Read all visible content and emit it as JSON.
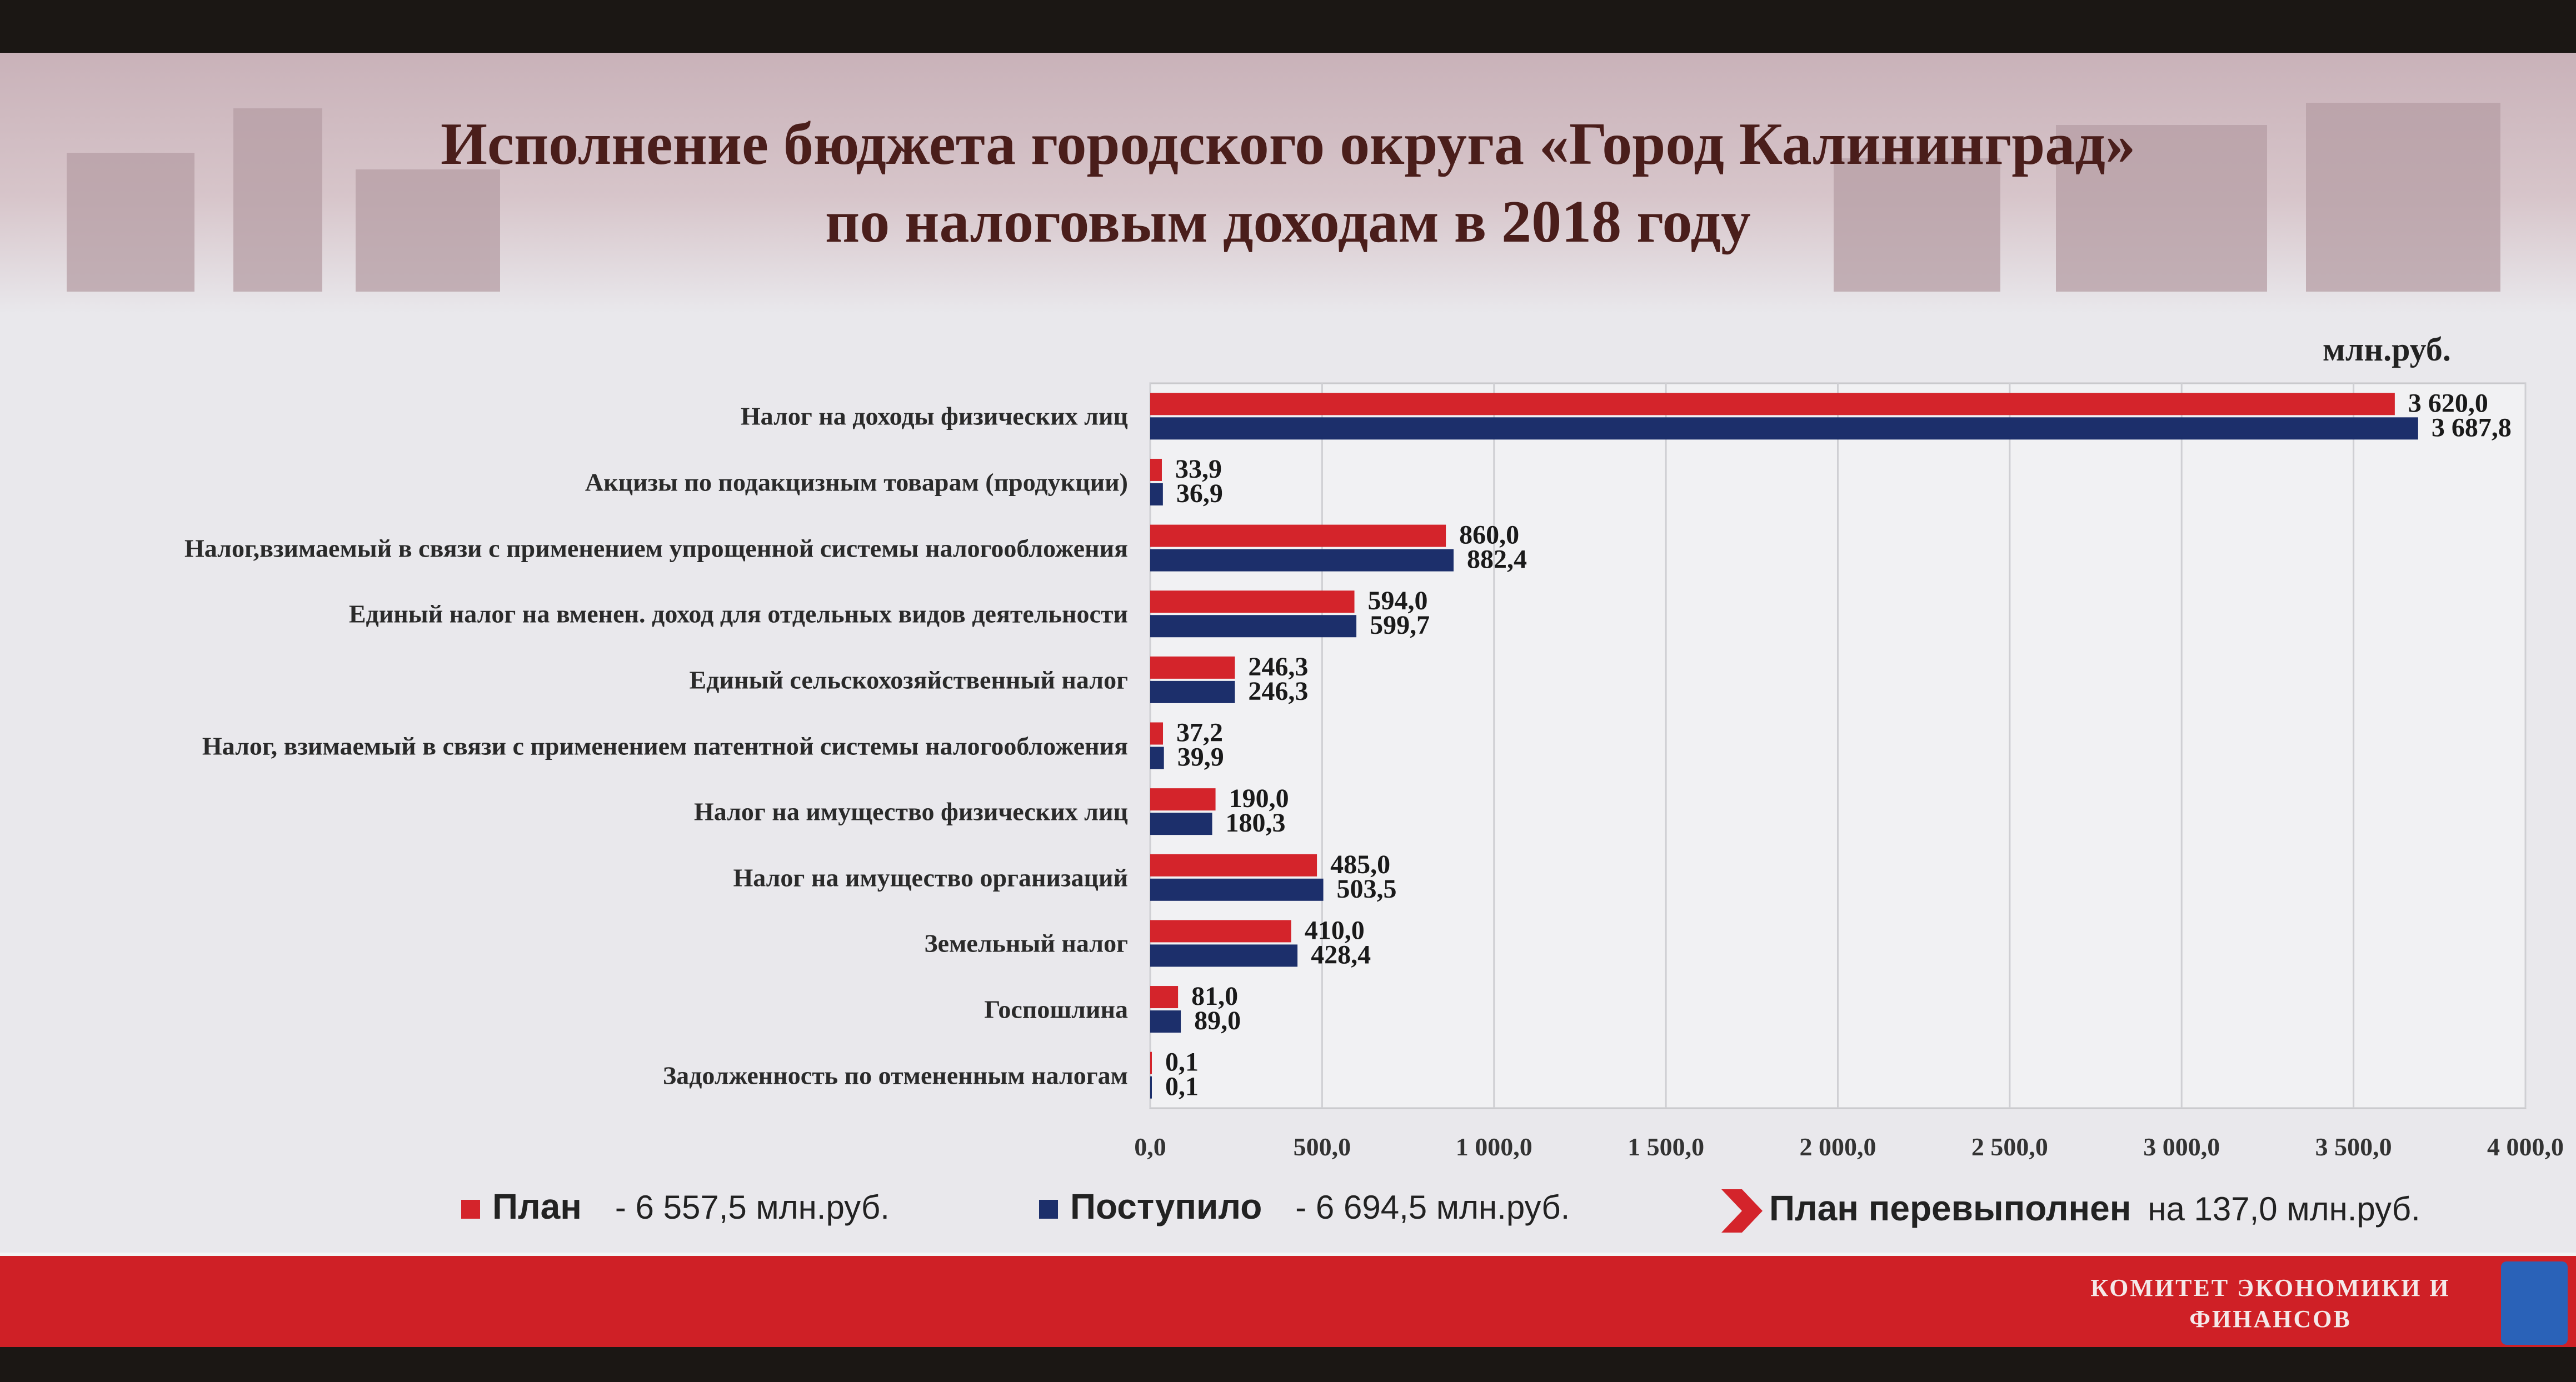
{
  "title_line1": "Исполнение бюджета городского округа «Город Калининград»",
  "title_line2": "по налоговым доходам в 2018 году",
  "unit": "млн.руб.",
  "legend": {
    "plan_label": "План",
    "plan_value": "- 6 557,5 млн.руб.",
    "actual_label": "Поступило",
    "actual_value": "- 6 694,5 млн.руб.",
    "over_label": "План перевыполнен",
    "over_value": "на 137,0 млн.руб."
  },
  "footer": {
    "committee_line1": "КОМИТЕТ ЭКОНОМИКИ И",
    "committee_line2": "ФИНАНСОВ"
  },
  "colors": {
    "plan": "#d4242b",
    "actual": "#1c2f6b",
    "footer": "#cf2026",
    "title": "#4a1e1b"
  },
  "chart_data": {
    "type": "bar",
    "orientation": "horizontal",
    "categories": [
      "Налог на доходы физических лиц",
      "Акцизы по подакцизным товарам (продукции)",
      "Налог,взимаемый в связи с применением упрощенной системы налогообложения",
      "Единый налог на вменен. доход для отдельных видов деятельности",
      "Единый сельскохозяйственный налог",
      "Налог, взимаемый в связи с применением патентной системы налогообложения",
      "Налог на имущество физических лиц",
      "Налог на имущество организаций",
      "Земельный налог",
      "Госпошлина",
      "Задолженность по отмененным налогам"
    ],
    "series": [
      {
        "name": "План",
        "values": [
          3620.0,
          33.9,
          860.0,
          594.0,
          246.3,
          37.2,
          190.0,
          485.0,
          410.0,
          81.0,
          0.1
        ],
        "labels": [
          "3 620,0",
          "33,9",
          "860,0",
          "594,0",
          "246,3",
          "37,2",
          "190,0",
          "485,0",
          "410,0",
          "81,0",
          "0,1"
        ]
      },
      {
        "name": "Поступило",
        "values": [
          3687.8,
          36.9,
          882.4,
          599.7,
          246.3,
          39.9,
          180.3,
          503.5,
          428.4,
          89.0,
          0.1
        ],
        "labels": [
          "3 687,8",
          "36,9",
          "882,4",
          "599,7",
          "246,3",
          "39,9",
          "180,3",
          "503,5",
          "428,4",
          "89,0",
          "0,1"
        ]
      }
    ],
    "xlim": [
      0,
      4000
    ],
    "xticks": [
      0,
      500,
      1000,
      1500,
      2000,
      2500,
      3000,
      3500,
      4000
    ],
    "xtick_labels": [
      "0,0",
      "500,0",
      "1 000,0",
      "1 500,0",
      "2 000,0",
      "2 500,0",
      "3 000,0",
      "3 500,0",
      "4 000,0"
    ],
    "grid": true
  }
}
